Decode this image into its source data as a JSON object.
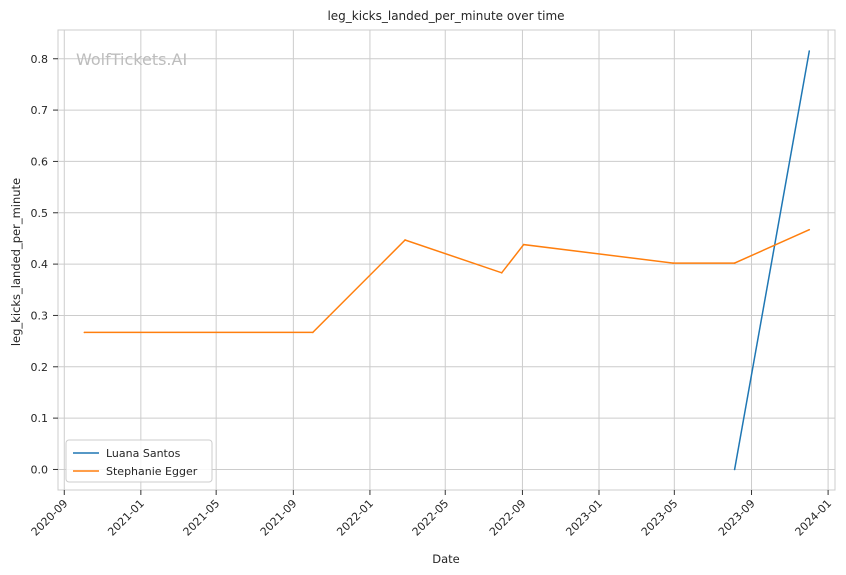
{
  "chart_data": {
    "type": "line",
    "title": "leg_kicks_landed_per_minute over time",
    "xlabel": "Date",
    "ylabel": "leg_kicks_landed_per_minute",
    "watermark": "WolfTickets.AI",
    "xlim": [
      "2020-08-22",
      "2024-01-12"
    ],
    "ylim": [
      -0.04,
      0.856
    ],
    "x_ticks": [
      "2020-09",
      "2021-01",
      "2021-05",
      "2021-09",
      "2022-01",
      "2022-05",
      "2022-09",
      "2023-01",
      "2023-05",
      "2023-09",
      "2024-01"
    ],
    "y_ticks": [
      0.0,
      0.1,
      0.2,
      0.3,
      0.4,
      0.5,
      0.6,
      0.7,
      0.8
    ],
    "y_tick_labels": [
      "0.0",
      "0.1",
      "0.2",
      "0.3",
      "0.4",
      "0.5",
      "0.6",
      "0.7",
      "0.8"
    ],
    "grid": true,
    "legend_position": "bottom-left",
    "series": [
      {
        "name": "Luana Santos",
        "color": "#1f77b4",
        "points": [
          {
            "x": "2023-08-05",
            "y": 0.0
          },
          {
            "x": "2023-12-02",
            "y": 0.815
          }
        ]
      },
      {
        "name": "Stephanie Egger",
        "color": "#ff7f0e",
        "points": [
          {
            "x": "2020-10-03",
            "y": 0.267
          },
          {
            "x": "2021-10-02",
            "y": 0.267
          },
          {
            "x": "2022-02-26",
            "y": 0.447
          },
          {
            "x": "2022-07-30",
            "y": 0.383
          },
          {
            "x": "2022-09-03",
            "y": 0.438
          },
          {
            "x": "2023-04-29",
            "y": 0.402
          },
          {
            "x": "2023-08-05",
            "y": 0.402
          },
          {
            "x": "2023-12-02",
            "y": 0.467
          }
        ]
      }
    ]
  }
}
